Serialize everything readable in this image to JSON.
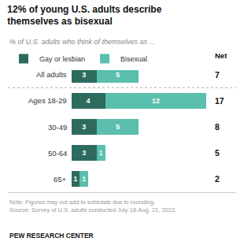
{
  "chart_data": {
    "type": "bar",
    "orientation": "horizontal",
    "stacked": true,
    "data_labels": true,
    "tick_labels": "y",
    "grid": false,
    "legend": "upper left",
    "title": "12% of young U.S. adults describe\nthemselves as bisexual",
    "subtitle": "% of U.S. adults who think of themselves as ...",
    "note": "Note: Figures may not add to subtotals due to rounding.\nSource: Survey of U.S. adults conducted July 18-Aug. 21, 2022.",
    "footer": "PEW RESEARCH CENTER",
    "categories": [
      "All adults",
      "Ages 18-29",
      "30-49",
      "50-64",
      "65+"
    ],
    "series": [
      {
        "name": "Gay or lesbian",
        "color": "#2d6b5e",
        "values": [
          3,
          4,
          3,
          3,
          1
        ]
      },
      {
        "name": "Bisexual",
        "color": "#5bbfad",
        "values": [
          5,
          12,
          5,
          1,
          1
        ]
      }
    ],
    "net_label": "Net",
    "net_values": [
      7,
      17,
      8,
      5,
      2
    ],
    "xlim": [
      -7.5,
      19.5
    ]
  }
}
